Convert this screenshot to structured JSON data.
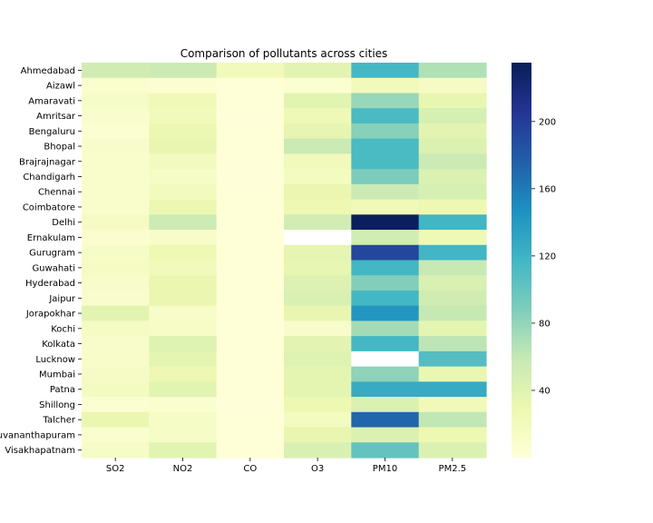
{
  "chart_data": {
    "type": "heatmap",
    "title": "Comparison of pollutants across cities",
    "xlabel": "",
    "ylabel": "",
    "columns": [
      "SO2",
      "NO2",
      "CO",
      "O3",
      "PM10",
      "PM2.5"
    ],
    "rows": [
      "Ahmedabad",
      "Aizawl",
      "Amaravati",
      "Amritsar",
      "Bengaluru",
      "Bhopal",
      "Brajrajnagar",
      "Chandigarh",
      "Chennai",
      "Coimbatore",
      "Delhi",
      "Ernakulam",
      "Gurugram",
      "Guwahati",
      "Hyderabad",
      "Jaipur",
      "Jorapokhar",
      "Kochi",
      "Kolkata",
      "Lucknow",
      "Mumbai",
      "Patna",
      "Shillong",
      "Talcher",
      "Thiruvananthapuram",
      "Visakhapatnam"
    ],
    "values": [
      [
        52,
        55,
        22,
        37,
        115,
        68
      ],
      [
        8,
        5,
        2,
        6,
        22,
        15
      ],
      [
        14,
        25,
        2,
        38,
        78,
        34
      ],
      [
        9,
        22,
        1,
        26,
        113,
        47
      ],
      [
        6,
        30,
        2,
        35,
        85,
        37
      ],
      [
        11,
        33,
        2,
        56,
        113,
        43
      ],
      [
        10,
        19,
        2,
        23,
        113,
        56
      ],
      [
        10,
        14,
        1,
        18,
        90,
        43
      ],
      [
        10,
        20,
        2,
        31,
        56,
        47
      ],
      [
        10,
        30,
        2,
        28,
        25,
        28
      ],
      [
        16,
        54,
        2,
        50,
        232,
        117
      ],
      [
        7,
        12,
        2,
        null,
        50,
        26
      ],
      [
        14,
        27,
        2,
        35,
        192,
        117
      ],
      [
        16,
        22,
        2,
        34,
        116,
        58
      ],
      [
        11,
        31,
        2,
        42,
        87,
        45
      ],
      [
        9,
        31,
        2,
        45,
        116,
        52
      ],
      [
        37,
        12,
        2,
        33,
        143,
        59
      ],
      [
        16,
        13,
        2,
        11,
        73,
        36
      ],
      [
        11,
        41,
        2,
        37,
        116,
        63
      ],
      [
        12,
        36,
        2,
        41,
        null,
        108
      ],
      [
        15,
        28,
        2,
        36,
        82,
        32
      ],
      [
        18,
        38,
        2,
        36,
        126,
        126
      ],
      [
        6,
        8,
        1,
        29,
        43,
        24
      ],
      [
        32,
        14,
        2,
        18,
        172,
        61
      ],
      [
        8,
        14,
        2,
        33,
        43,
        29
      ],
      [
        14,
        38,
        2,
        45,
        101,
        43
      ]
    ],
    "colorbar": {
      "ticks": [
        40,
        80,
        120,
        160,
        200
      ],
      "min": 0,
      "max": 235
    },
    "colormap": [
      "#ffffd9",
      "#edf8b1",
      "#c7e9b4",
      "#7fcdbb",
      "#41b6c4",
      "#1d91c0",
      "#225ea8",
      "#253494",
      "#081d58"
    ],
    "missing_color": "#ffffff",
    "grid": false
  }
}
